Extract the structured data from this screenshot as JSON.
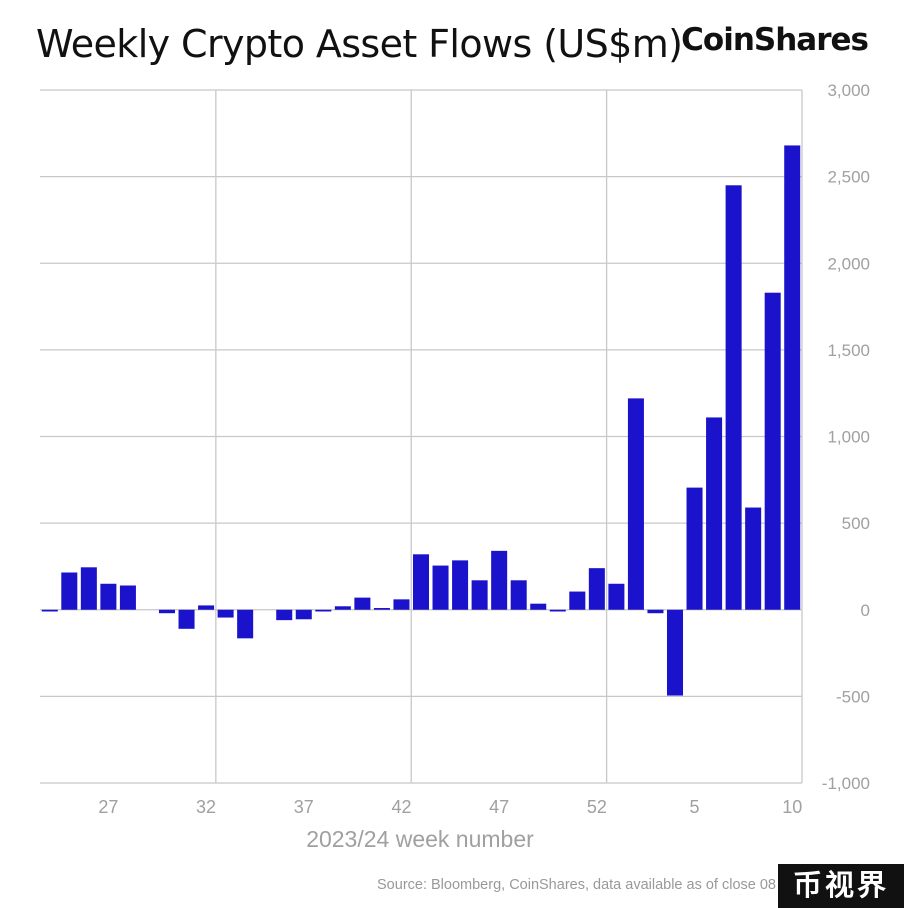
{
  "header": {
    "title": "Weekly Crypto Asset Flows (US$m)",
    "brand": "CoinShares"
  },
  "footer": {
    "source": "Source: Bloomberg, CoinShares, data available as of close 08",
    "watermark": "币视界"
  },
  "chart_data": {
    "type": "bar",
    "title": "Weekly Crypto Asset Flows (US$m)",
    "xlabel": "2023/24 week number",
    "ylabel": "",
    "ylim": [
      -1000,
      3000
    ],
    "yticks": [
      -1000,
      -500,
      0,
      500,
      1000,
      1500,
      2000,
      2500,
      3000
    ],
    "ytick_labels": [
      "-1,000",
      "-500",
      "0",
      "500",
      "1,000",
      "1,500",
      "2,000",
      "2,500",
      "3,000"
    ],
    "y_axis_side": "right",
    "grid": true,
    "bar_color": "#1b12cc",
    "categories": [
      "24",
      "25",
      "26",
      "27",
      "28",
      "29",
      "30",
      "31",
      "32",
      "33",
      "34",
      "35",
      "36",
      "37",
      "38",
      "39",
      "40",
      "41",
      "42",
      "43",
      "44",
      "45",
      "46",
      "47",
      "48",
      "49",
      "50",
      "51",
      "52",
      "1",
      "2",
      "3",
      "4",
      "5",
      "6",
      "7",
      "8",
      "9",
      "10"
    ],
    "values": [
      -10,
      215,
      245,
      150,
      140,
      0,
      -20,
      -110,
      25,
      -45,
      -165,
      0,
      -60,
      -55,
      -10,
      20,
      70,
      10,
      60,
      320,
      255,
      285,
      170,
      340,
      170,
      35,
      -10,
      105,
      240,
      150,
      1220,
      -20,
      -495,
      705,
      1110,
      2450,
      590,
      1830,
      2680
    ],
    "xtick_labels": [
      {
        "category": "27",
        "label": "27"
      },
      {
        "category": "32",
        "label": "32"
      },
      {
        "category": "37",
        "label": "37"
      },
      {
        "category": "42",
        "label": "42"
      },
      {
        "category": "47",
        "label": "47"
      },
      {
        "category": "52",
        "label": "52"
      },
      {
        "category": "5",
        "label": "5"
      },
      {
        "category": "10",
        "label": "10"
      }
    ],
    "vertical_gridlines_at": [
      "32",
      "42",
      "52"
    ]
  }
}
